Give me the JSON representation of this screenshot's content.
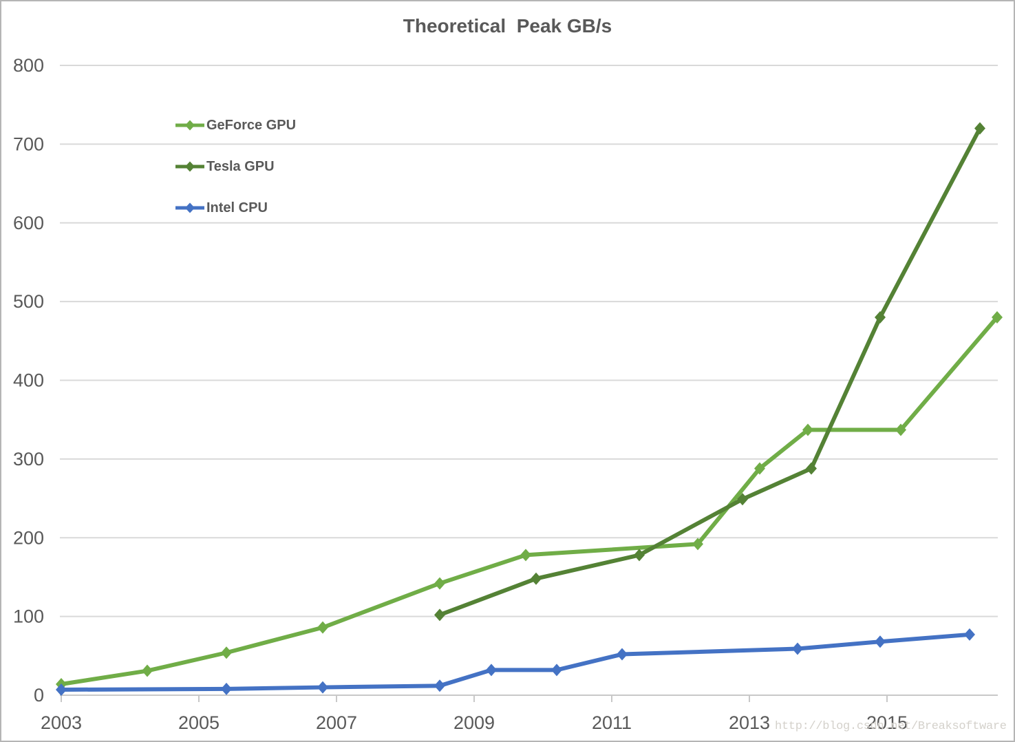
{
  "chart_data": {
    "type": "line",
    "title": "Theoretical  Peak GB/s",
    "xlabel": "",
    "ylabel": "",
    "xlim": [
      2003,
      2016.6
    ],
    "ylim": [
      0,
      800
    ],
    "xticks": [
      2003,
      2005,
      2007,
      2009,
      2011,
      2013,
      2015
    ],
    "yticks": [
      0,
      100,
      200,
      300,
      400,
      500,
      600,
      700,
      800
    ],
    "grid": "horizontal",
    "legend_position": "upper-left-inside",
    "marker": "diamond",
    "axis_text_color": "#595959",
    "gridline_color": "#d9d9d9",
    "series": [
      {
        "name": "GeForce GPU",
        "color": "#70AD47",
        "x": [
          2003.0,
          2004.25,
          2005.4,
          2006.8,
          2008.5,
          2009.75,
          2012.25,
          2013.15,
          2013.85,
          2015.2,
          2016.6
        ],
        "y": [
          14,
          31,
          54,
          86,
          142,
          178,
          192,
          288,
          337,
          337,
          480
        ]
      },
      {
        "name": "Tesla GPU",
        "color": "#548235",
        "x": [
          2008.5,
          2009.9,
          2011.4,
          2012.9,
          2013.9,
          2014.9,
          2016.35
        ],
        "y": [
          102,
          148,
          178,
          249,
          288,
          480,
          720
        ]
      },
      {
        "name": "Intel CPU",
        "color": "#4472C4",
        "x": [
          2003.0,
          2005.4,
          2006.8,
          2008.5,
          2009.25,
          2010.2,
          2011.15,
          2013.7,
          2014.9,
          2016.2
        ],
        "y": [
          7,
          8,
          10,
          12,
          32,
          32,
          52,
          59,
          68,
          77
        ]
      }
    ]
  },
  "watermark": "http://blog.csdn.net/Breaksoftware"
}
